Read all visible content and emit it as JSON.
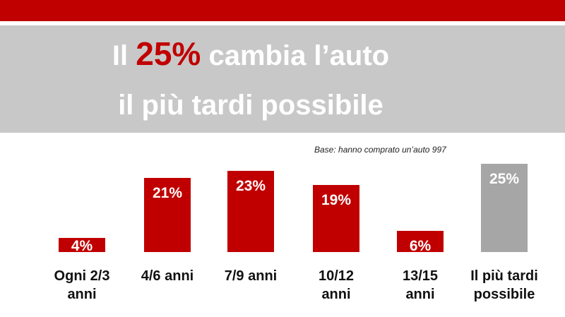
{
  "chart_data": {
    "type": "bar",
    "title": {
      "before": "Il",
      "highlight": "25%",
      "after": "cambia l’auto"
    },
    "subtitle": "il più tardi possibile",
    "note": "Base: hanno comprato un’auto  997",
    "categories": [
      "Ogni 2/3 anni",
      "4/6 anni",
      "7/9 anni",
      "10/12 anni",
      "13/15 anni",
      "Il più tardi possibile"
    ],
    "values": [
      4,
      21,
      23,
      19,
      6,
      25
    ],
    "value_labels": [
      "4%",
      "21%",
      "23%",
      "19%",
      "6%",
      "25%"
    ],
    "colors": [
      "#c00000",
      "#c00000",
      "#c00000",
      "#c00000",
      "#c00000",
      "#a6a6a6"
    ]
  }
}
